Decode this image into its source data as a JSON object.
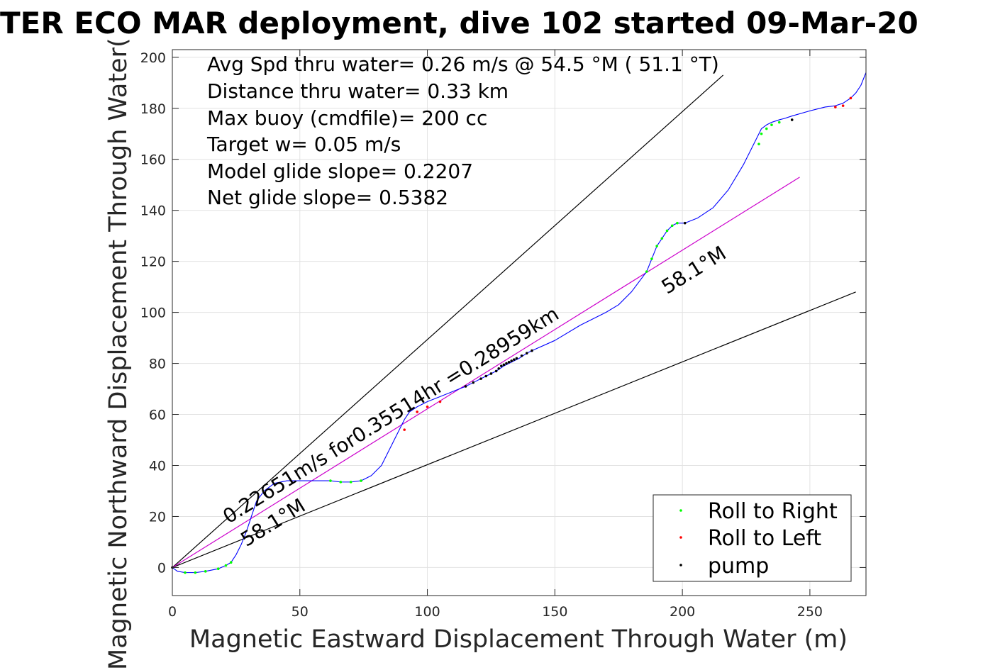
{
  "chart_data": {
    "type": "line",
    "title": "TER ECO MAR deployment, dive 102 started 09-Mar-20",
    "xlabel": "Magnetic Eastward Displacement Through Water (m)",
    "ylabel": "Magnetic Northward Displacement Through Water(",
    "xlim": [
      0,
      272
    ],
    "ylim": [
      -11,
      203
    ],
    "xticks": [
      0,
      50,
      100,
      150,
      200,
      250
    ],
    "yticks": [
      0,
      20,
      40,
      60,
      80,
      100,
      120,
      140,
      160,
      180,
      200
    ],
    "grid": true,
    "legend_position": "bottom-right",
    "annotation_lines": [
      "Avg Spd thru water=  0.26 m/s @  54.5 °M ( 51.1 °T)",
      "Distance thru water=  0.33 km",
      "Max buoy (cmdfile)= 200 cc",
      "Target w= 0.05 m/s",
      "Model glide slope= 0.2207",
      "Net glide slope= 0.5382"
    ],
    "rotated_labels": [
      {
        "text": "0.22651m/s for0.35514hr =0.28959km",
        "x": 22,
        "y": 17,
        "angle": 31.9
      },
      {
        "text": "58.1°M",
        "x": 29,
        "y": 8,
        "angle": 31.9
      },
      {
        "text": "58.1°M",
        "x": 194,
        "y": 107,
        "angle": 31.9
      }
    ],
    "reference_lines": [
      {
        "name": "upper",
        "x": [
          0,
          216
        ],
        "y": [
          0,
          193
        ],
        "color": "#000000"
      },
      {
        "name": "lower",
        "x": [
          0,
          268
        ],
        "y": [
          0,
          108
        ],
        "color": "#000000"
      },
      {
        "name": "net-track",
        "x": [
          0,
          246
        ],
        "y": [
          0,
          153
        ],
        "color": "#cc00cc"
      }
    ],
    "track": {
      "color": "#0000ff",
      "x": [
        0,
        2,
        5,
        9,
        13,
        18,
        21,
        23,
        25,
        27,
        29,
        31,
        33,
        36,
        40,
        45,
        50,
        55,
        62,
        66,
        70,
        74,
        78,
        82,
        86,
        89,
        91,
        93,
        96,
        100,
        105,
        110,
        115,
        118,
        121,
        124,
        127,
        130,
        133,
        136,
        139,
        141,
        150,
        160,
        170,
        175,
        180,
        183,
        186,
        188,
        190,
        192,
        194,
        196,
        198,
        201,
        206,
        212,
        218,
        224,
        228,
        230,
        231,
        233,
        235,
        238,
        240,
        243,
        250,
        256,
        260,
        263,
        266,
        268,
        270,
        272
      ],
      "y": [
        0,
        -1.5,
        -2,
        -2,
        -1.5,
        -0.5,
        0.8,
        2,
        5,
        9,
        14,
        20,
        26,
        30,
        33,
        34,
        34,
        34,
        34,
        33.5,
        33.5,
        34,
        36,
        40,
        48,
        54,
        58,
        61,
        63,
        65,
        67,
        69,
        71,
        72.5,
        74,
        75.5,
        77,
        79,
        80.5,
        82,
        84,
        85,
        89,
        95,
        100,
        103,
        108,
        112,
        116,
        121,
        126,
        129,
        132,
        134,
        135,
        135,
        137,
        141,
        148,
        158,
        166,
        170,
        172,
        173.5,
        174.5,
        175.5,
        176,
        177,
        179,
        180.5,
        181,
        182,
        184,
        186,
        189,
        194
      ]
    },
    "series": [
      {
        "name": "Roll to Right",
        "color": "#00ff00",
        "x": [
          5,
          9,
          13,
          18,
          21,
          23,
          62,
          66,
          70,
          74,
          186,
          188,
          190,
          192,
          194,
          196,
          198,
          230,
          231,
          233,
          235,
          238
        ],
        "y": [
          -2,
          -2,
          -1.5,
          -0.5,
          0.8,
          2,
          34,
          33.5,
          33.5,
          34,
          116,
          121,
          126,
          129,
          132,
          134,
          135,
          166,
          170,
          172,
          173.5,
          174.5
        ]
      },
      {
        "name": "Roll to Left",
        "color": "#ff0000",
        "x": [
          91,
          96,
          100,
          105,
          260,
          263,
          266
        ],
        "y": [
          54,
          61,
          63,
          65,
          180.5,
          181,
          184
        ]
      },
      {
        "name": "pump",
        "color": "#000000",
        "x": [
          0,
          115,
          118,
          121,
          123,
          125,
          127,
          128,
          129,
          130,
          131,
          132,
          133,
          134,
          135,
          137,
          139,
          141,
          201,
          243
        ],
        "y": [
          0,
          71,
          72.5,
          74,
          75,
          76,
          77,
          78,
          79,
          79.5,
          80,
          80.5,
          81,
          81.5,
          82,
          83,
          84,
          85,
          135,
          175.5
        ]
      }
    ]
  }
}
